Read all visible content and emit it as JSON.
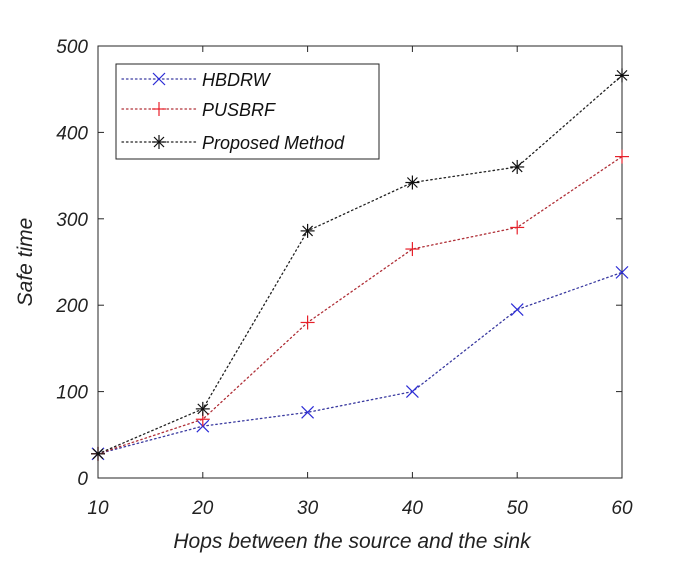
{
  "chart_data": {
    "type": "line",
    "xlabel": "Hops between the source and the sink",
    "ylabel": "Safe time",
    "xlim": [
      10,
      60
    ],
    "ylim": [
      0,
      500
    ],
    "xticks": [
      "10",
      "20",
      "30",
      "40",
      "50",
      "60"
    ],
    "yticks": [
      "0",
      "100",
      "200",
      "300",
      "400",
      "500"
    ],
    "grid": false,
    "legend_position": "top-left",
    "x": [
      10,
      20,
      30,
      40,
      50,
      60
    ],
    "series": [
      {
        "name": "HBDRW",
        "marker": "x",
        "color": "#2b2bd6",
        "line_color": "#3a3aa0",
        "values": [
          28,
          60,
          76,
          100,
          195,
          238
        ]
      },
      {
        "name": "PUSBRF",
        "marker": "+",
        "color": "#e8202a",
        "line_color": "#b03038",
        "values": [
          28,
          68,
          180,
          265,
          290,
          372
        ]
      },
      {
        "name": "Proposed Method",
        "marker": "*",
        "color": "#111111",
        "line_color": "#222222",
        "values": [
          28,
          80,
          286,
          342,
          360,
          466
        ]
      }
    ]
  }
}
